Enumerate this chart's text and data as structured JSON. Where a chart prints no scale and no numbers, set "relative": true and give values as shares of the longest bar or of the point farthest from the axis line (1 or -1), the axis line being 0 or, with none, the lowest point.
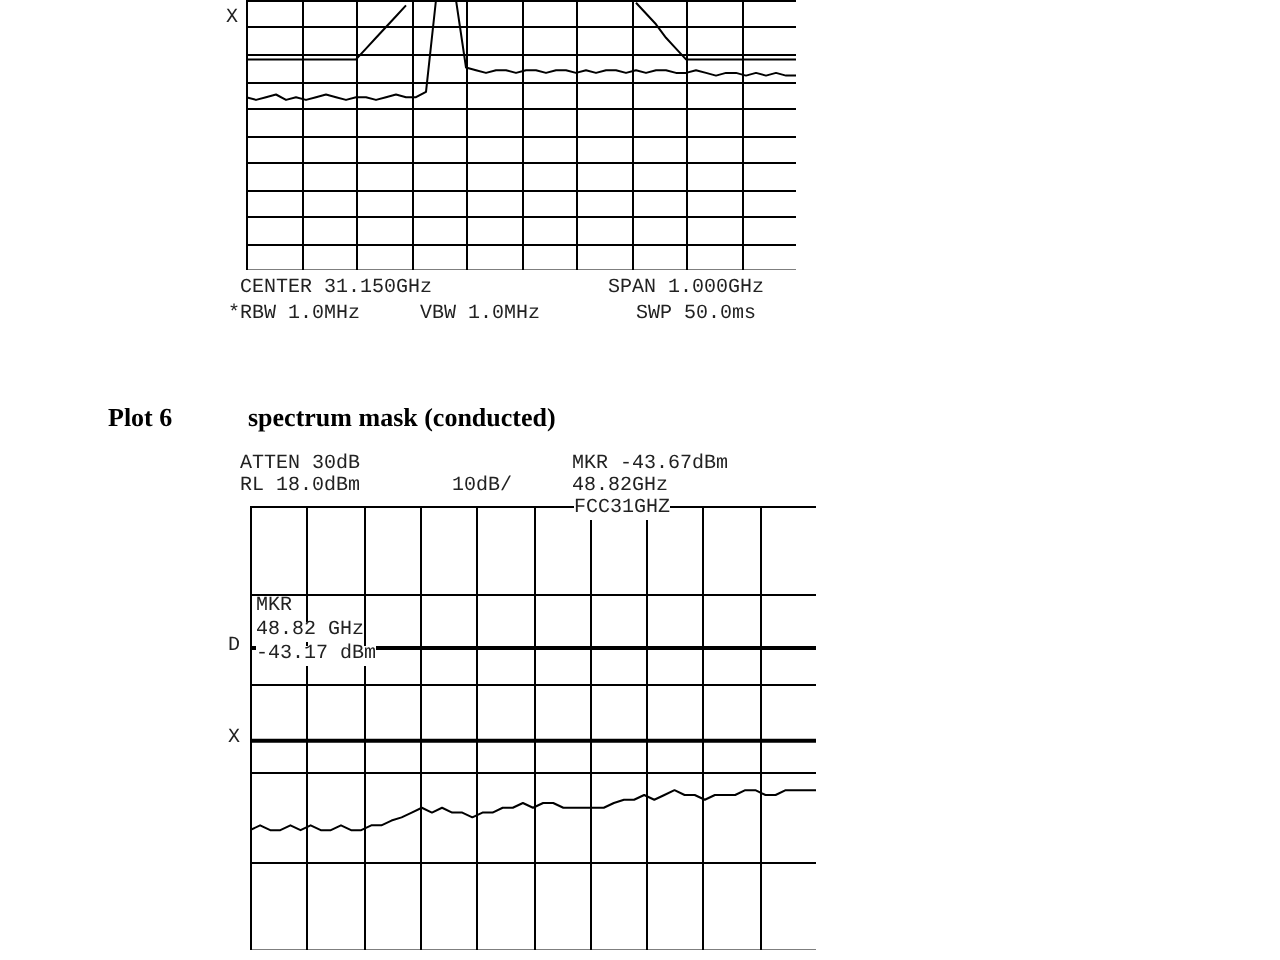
{
  "chart_data": [
    {
      "type": "line",
      "relative": true,
      "grid": true,
      "tick_labels": false,
      "line_style": "solid",
      "categories": [
        null,
        null,
        null,
        null,
        null,
        null,
        null,
        null,
        null,
        null,
        null,
        null,
        null,
        null,
        null,
        null,
        null,
        null,
        null,
        null,
        null,
        null,
        null,
        null,
        null,
        null,
        null,
        null,
        null,
        null,
        null,
        null,
        null,
        null,
        null,
        null,
        null,
        null,
        null,
        null,
        null,
        null,
        null,
        null,
        null,
        null,
        null,
        null,
        null,
        null,
        null,
        null,
        null,
        null,
        null,
        null
      ],
      "series": [
        {
          "color": "#000000",
          "values": [
            0.64,
            0.63,
            0.64,
            0.65,
            0.63,
            0.64,
            0.63,
            0.64,
            0.65,
            0.64,
            0.63,
            0.64,
            0.64,
            0.63,
            0.64,
            0.65,
            0.64,
            0.64,
            0.66,
            1,
            1,
            1,
            0.75,
            0.74,
            0.73,
            0.74,
            0.74,
            0.73,
            0.74,
            0.74,
            0.73,
            0.74,
            0.74,
            0.73,
            0.74,
            0.73,
            0.74,
            0.74,
            0.73,
            0.74,
            0.73,
            0.74,
            0.74,
            0.73,
            0.73,
            0.74,
            0.73,
            0.72,
            0.73,
            0.73,
            0.72,
            0.73,
            0.72,
            0.73,
            0.72,
            0.72
          ]
        },
        {
          "color": "#000000",
          "values": [
            0.78,
            0.78,
            0.78,
            0.78,
            0.78,
            0.78,
            0.78,
            0.78,
            0.78,
            0.78,
            0.78,
            0.78,
            0.82,
            0.86,
            0.9,
            0.94,
            0.98,
            null,
            null,
            null,
            null,
            null,
            null,
            null,
            null,
            null,
            null,
            null,
            null,
            null,
            null,
            null,
            null,
            null,
            null,
            null,
            null,
            null,
            null,
            0.99,
            0.95,
            0.91,
            0.86,
            0.82,
            0.78,
            0.78,
            0.78,
            0.78,
            0.78,
            0.78,
            0.78,
            0.78,
            0.78,
            0.78,
            0.78,
            0.78
          ]
        }
      ],
      "annotations": [
        "X",
        "CENTER 31.150GHz",
        "SPAN 1.000GHz",
        "*RBW 1.0MHz",
        "VBW 1.0MHz",
        "SWP 50.0ms"
      ]
    },
    {
      "type": "line",
      "relative": true,
      "grid": true,
      "tick_labels": false,
      "line_style": "solid",
      "title": "spectrum mask (conducted)",
      "categories": [
        null,
        null,
        null,
        null,
        null,
        null,
        null,
        null,
        null,
        null,
        null,
        null,
        null,
        null,
        null,
        null,
        null,
        null,
        null,
        null,
        null,
        null,
        null,
        null,
        null,
        null,
        null,
        null,
        null,
        null,
        null,
        null,
        null,
        null,
        null,
        null,
        null,
        null,
        null,
        null,
        null,
        null,
        null,
        null,
        null,
        null,
        null,
        null,
        null,
        null,
        null,
        null,
        null,
        null,
        null,
        null,
        null
      ],
      "series": [
        {
          "color": "#000000",
          "values": [
            0.75,
            0.78,
            0.75,
            0.75,
            0.78,
            0.75,
            0.78,
            0.75,
            0.75,
            0.78,
            0.75,
            0.75,
            0.78,
            0.78,
            0.81,
            0.83,
            0.86,
            0.89,
            0.86,
            0.89,
            0.86,
            0.86,
            0.83,
            0.86,
            0.86,
            0.89,
            0.89,
            0.92,
            0.89,
            0.92,
            0.92,
            0.89,
            0.89,
            0.89,
            0.89,
            0.89,
            0.92,
            0.94,
            0.94,
            0.97,
            0.94,
            0.97,
            1,
            0.97,
            0.97,
            0.94,
            0.97,
            0.97,
            0.97,
            1,
            1,
            0.97,
            0.97,
            1,
            1,
            1,
            1
          ]
        }
      ],
      "ref_lines": [
        {
          "axis": "y",
          "value": 1.89,
          "label": "D"
        },
        {
          "axis": "y",
          "value": 1.31,
          "label": "X"
        }
      ],
      "annotations": [
        "Plot 6",
        "ATTEN 30dB",
        "RL 18.0dBm",
        "10dB/",
        "MKR -43.67dBm",
        "48.82GHz",
        "FCC31GHZ",
        "MKR",
        "48.82 GHz",
        "-43.17 dBm"
      ]
    }
  ]
}
